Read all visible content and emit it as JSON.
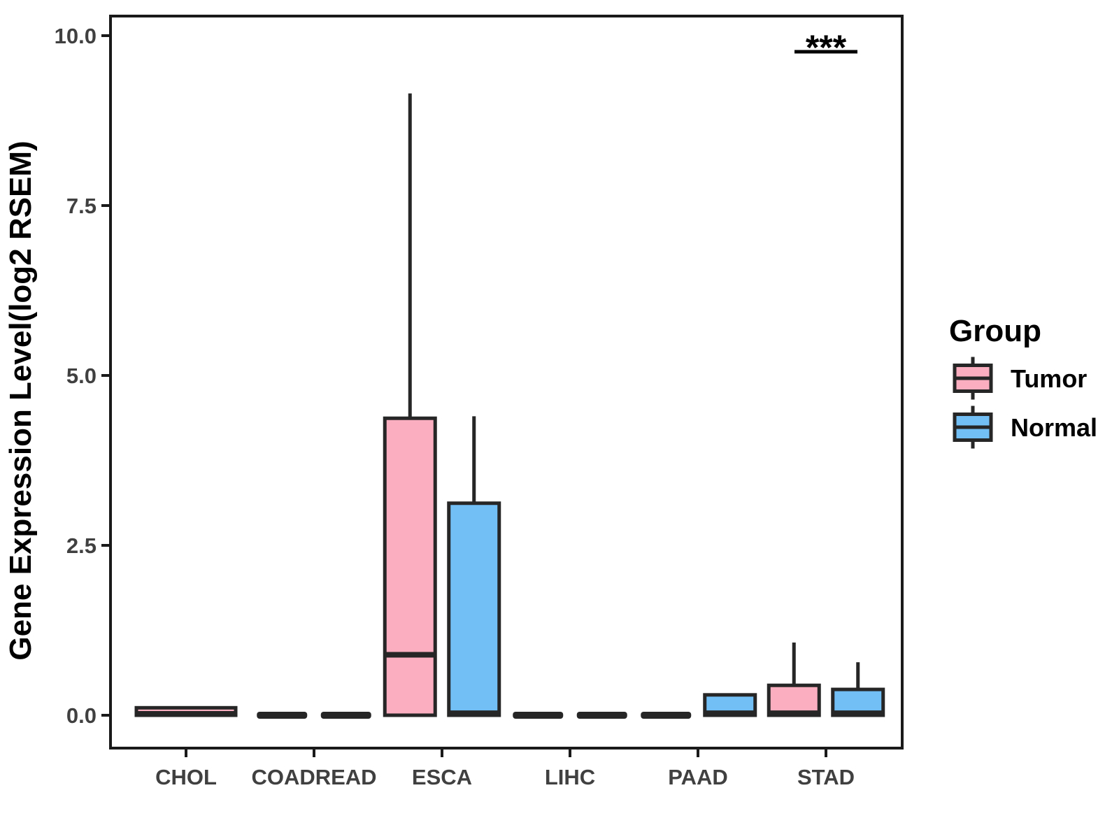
{
  "figure": {
    "background": "#FFFFFF"
  },
  "chart_data": {
    "type": "boxplot",
    "title": "",
    "xlabel": "",
    "ylabel": "Gene Expression Level(log2 RSEM)",
    "categories": [
      "CHOL",
      "COADREAD",
      "ESCA",
      "LIHC",
      "PAAD",
      "STAD"
    ],
    "groups": [
      "Tumor",
      "Normal"
    ],
    "y_ticks": [
      {
        "value": 0.0,
        "label": "0.0"
      },
      {
        "value": 2.5,
        "label": "2.5"
      },
      {
        "value": 5.0,
        "label": "5.0"
      },
      {
        "value": 7.5,
        "label": "7.5"
      },
      {
        "value": 10.0,
        "label": "10.0"
      }
    ],
    "ylim": [
      -0.48,
      10.3
    ],
    "grid": false,
    "boxes": [
      {
        "category": "CHOL",
        "group": "Tumor",
        "low": 0,
        "q1": 0,
        "median": 0.02,
        "q3": 0.11,
        "high": 0.11,
        "full_width": true
      },
      {
        "category": "COADREAD",
        "group": "Tumor",
        "low": 0,
        "q1": 0,
        "median": 0,
        "q3": 0,
        "high": 0
      },
      {
        "category": "COADREAD",
        "group": "Normal",
        "low": 0,
        "q1": 0,
        "median": 0,
        "q3": 0,
        "high": 0
      },
      {
        "category": "ESCA",
        "group": "Tumor",
        "low": 0,
        "q1": 0,
        "median": 0.89,
        "q3": 4.37,
        "high": 9.15
      },
      {
        "category": "ESCA",
        "group": "Normal",
        "low": 0,
        "q1": 0,
        "median": 0.03,
        "q3": 3.12,
        "high": 4.4
      },
      {
        "category": "LIHC",
        "group": "Tumor",
        "low": 0,
        "q1": 0,
        "median": 0,
        "q3": 0,
        "high": 0
      },
      {
        "category": "LIHC",
        "group": "Normal",
        "low": 0,
        "q1": 0,
        "median": 0,
        "q3": 0,
        "high": 0
      },
      {
        "category": "PAAD",
        "group": "Tumor",
        "low": 0,
        "q1": 0,
        "median": 0,
        "q3": 0,
        "high": 0
      },
      {
        "category": "PAAD",
        "group": "Normal",
        "low": 0,
        "q1": 0,
        "median": 0.03,
        "q3": 0.3,
        "high": 0.3
      },
      {
        "category": "STAD",
        "group": "Tumor",
        "low": 0,
        "q1": 0,
        "median": 0.03,
        "q3": 0.44,
        "high": 1.07
      },
      {
        "category": "STAD",
        "group": "Normal",
        "low": 0,
        "q1": 0,
        "median": 0.03,
        "q3": 0.38,
        "high": 0.78
      }
    ],
    "annotations": [
      {
        "text": "***",
        "category": "STAD"
      }
    ],
    "legend": {
      "title": "Group",
      "position": "right",
      "entries": [
        {
          "label": "Tumor",
          "color": "#FBAEBF"
        },
        {
          "label": "Normal",
          "color": "#72BFF6"
        }
      ]
    },
    "colors": {
      "tumor_fill": "#FBAEBF",
      "normal_fill": "#72BFF6",
      "box_border": "#262626",
      "axis_text": "#404040",
      "axis_line": "#1A1A1A",
      "annotation": "#000000"
    }
  }
}
